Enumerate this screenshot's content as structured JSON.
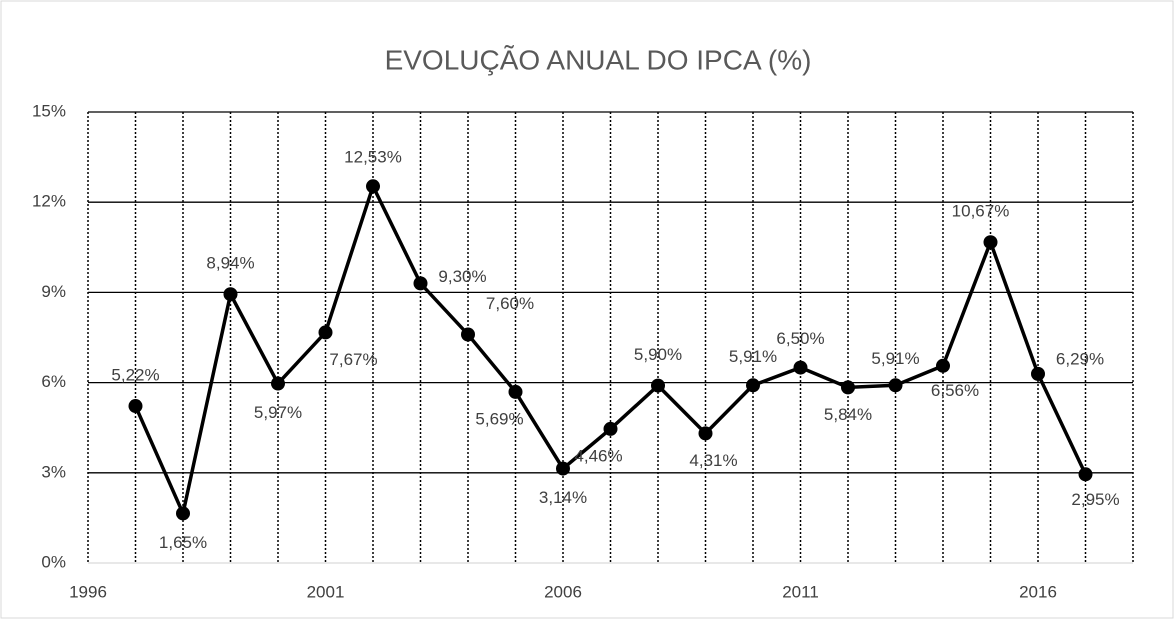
{
  "chart_data": {
    "type": "line",
    "title": "EVOLUÇÃO ANUAL DO IPCA (%)",
    "x": [
      1997,
      1998,
      1999,
      2000,
      2001,
      2002,
      2003,
      2004,
      2005,
      2006,
      2007,
      2008,
      2009,
      2010,
      2011,
      2012,
      2013,
      2014,
      2015,
      2016,
      2017
    ],
    "series": [
      {
        "name": "IPCA",
        "color": "#000000",
        "values": [
          5.22,
          1.65,
          8.94,
          5.97,
          7.67,
          12.53,
          9.3,
          7.6,
          5.69,
          3.14,
          4.46,
          5.9,
          4.31,
          5.91,
          6.5,
          5.84,
          5.91,
          6.56,
          10.67,
          6.29,
          2.95
        ],
        "value_labels": [
          "5,22%",
          "1,65%",
          "8,94%",
          "5,97%",
          "7,67%",
          "12,53%",
          "9,30%",
          "7,60%",
          "5,69%",
          "3,14%",
          "4,46%",
          "5,90%",
          "4,31%",
          "5,91%",
          "6,50%",
          "5,84%",
          "5,91%",
          "6,56%",
          "10,67%",
          "6,29%",
          "2,95%"
        ]
      }
    ],
    "xlim": [
      1996,
      2018
    ],
    "xticks": [
      1996,
      2001,
      2006,
      2011,
      2016
    ],
    "ylim": [
      0,
      15
    ],
    "yticks": [
      {
        "value": 0,
        "label": "0%"
      },
      {
        "value": 3,
        "label": "3%"
      },
      {
        "value": 6,
        "label": "6%"
      },
      {
        "value": 9,
        "label": "9%"
      },
      {
        "value": 12,
        "label": "12%"
      },
      {
        "value": 15,
        "label": "15%"
      }
    ],
    "grid": true
  }
}
